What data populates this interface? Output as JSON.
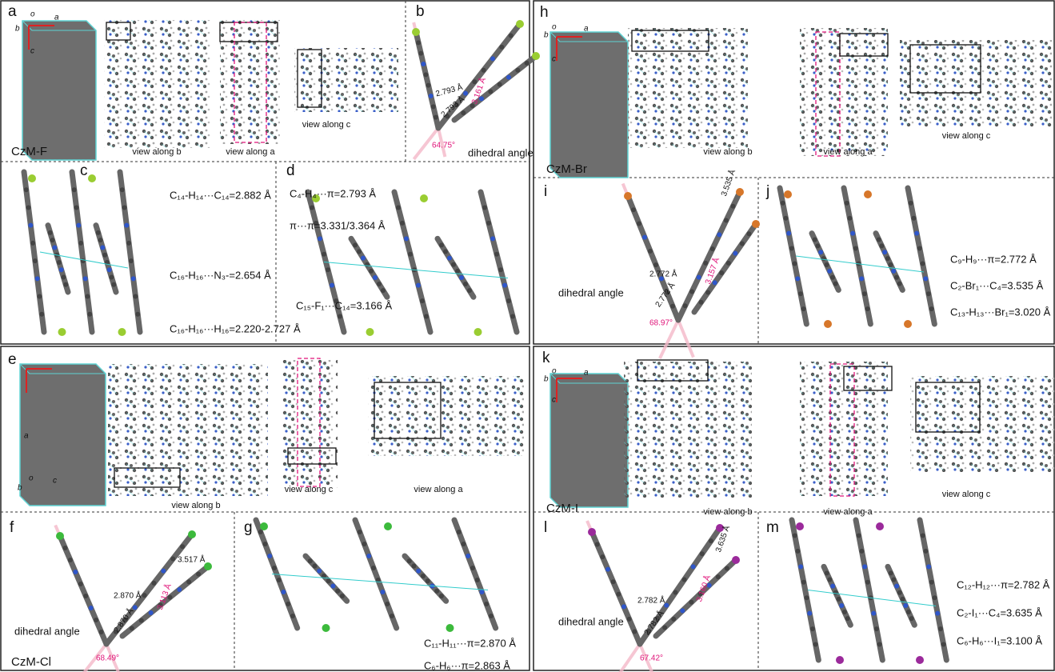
{
  "panel_a": {
    "letter": "a",
    "compound": "CzM-F",
    "views": [
      "view along b",
      "view along a",
      "view along c"
    ],
    "axes": [
      "o",
      "a",
      "b",
      "c"
    ]
  },
  "panel_b": {
    "letter": "b",
    "distances": [
      "2.793 Å",
      "2.793 Å",
      "3.161 Å"
    ],
    "angle": "64.75°",
    "caption": "dihedral angle"
  },
  "panel_c": {
    "letter": "c",
    "interactions": [
      "C₁₄-H₁₄···C₁₄=2.882 Å",
      "C₁₆-H₁₆···N₃-=2.654 Å",
      "C₁₆-H₁₆···H₁₆=2.220-2.727 Å"
    ]
  },
  "panel_d": {
    "letter": "d",
    "interactions": [
      "C₄-H₄···π=2.793 Å",
      "π···π=3.331/3.364 Å",
      "C₁₅-F₁···C₁₄=3.166 Å"
    ]
  },
  "panel_e": {
    "letter": "e",
    "compound": "CzM-Cl",
    "views": [
      "view along b",
      "view along c",
      "view along a"
    ],
    "axes": [
      "a",
      "o",
      "b",
      "c"
    ]
  },
  "panel_f": {
    "letter": "f",
    "distances": [
      "2.870 Å",
      "2.870 Å",
      "3.517 Å",
      "3.113 Å"
    ],
    "angle": "68.49°",
    "caption": "dihedral angle"
  },
  "panel_g": {
    "letter": "g",
    "interactions": [
      "C₁₁-H₁₁···π=2.870 Å",
      "C₆-H₆···π=2.863 Å"
    ]
  },
  "panel_h": {
    "letter": "h",
    "compound": "CzM-Br",
    "views": [
      "view along b",
      "view along a",
      "view along c"
    ],
    "axes": [
      "o",
      "a",
      "b",
      "c"
    ]
  },
  "panel_i": {
    "letter": "i",
    "distances": [
      "2.772 Å",
      "2.772 Å",
      "3.535 Å",
      "3.157 Å"
    ],
    "angle": "68.97°",
    "caption": "dihedral angle"
  },
  "panel_j": {
    "letter": "j",
    "interactions": [
      "C₉-H₉···π=2.772 Å",
      "C₂-Br₁···C₄=3.535 Å",
      "C₁₃-H₁₃···Br₁=3.020 Å"
    ]
  },
  "panel_k": {
    "letter": "k",
    "compound": "CzM-I",
    "views": [
      "view along b",
      "view along a",
      "view along c"
    ],
    "axes": [
      "o",
      "a",
      "b",
      "c"
    ]
  },
  "panel_l": {
    "letter": "l",
    "distances": [
      "2.782 Å",
      "2.782 Å",
      "3.635 Å",
      "3.160 Å"
    ],
    "angle": "67.42°",
    "caption": "dihedral angle"
  },
  "panel_m": {
    "letter": "m",
    "interactions": [
      "C₁₂-H₁₂···π=2.782 Å",
      "C₂-I₁···C₄=3.635 Å",
      "C₆-H₆···I₁=3.100 Å"
    ]
  }
}
